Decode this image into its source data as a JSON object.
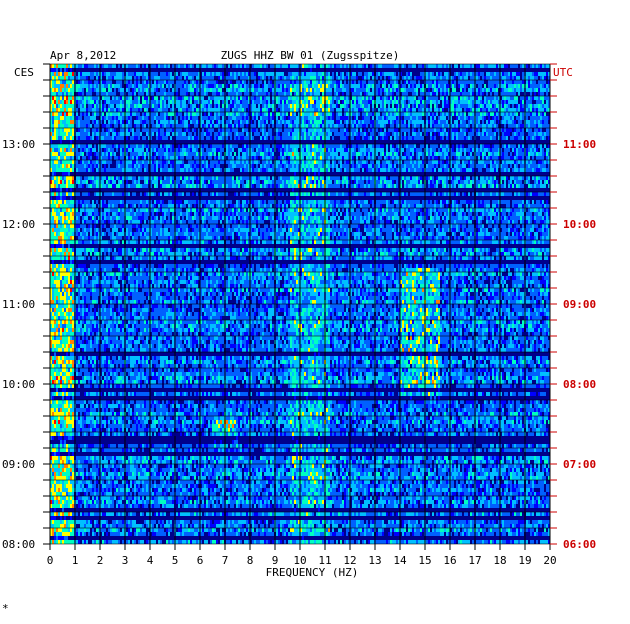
{
  "chart_data": {
    "type": "heatmap",
    "date": "Apr 8,2012",
    "title": "ZUGS HHZ BW 01 (Zugsspitze)",
    "left_timezone": "CES",
    "right_timezone": "UTC",
    "xlabel": "FREQUENCY (HZ)",
    "xlim": [
      0,
      20
    ],
    "x_ticks": [
      "0",
      "1",
      "2",
      "3",
      "4",
      "5",
      "6",
      "7",
      "8",
      "9",
      "10",
      "11",
      "12",
      "13",
      "14",
      "15",
      "16",
      "17",
      "18",
      "19",
      "20"
    ],
    "ylim_local": [
      "08:00",
      "14:00"
    ],
    "y_ticks_left": [
      "13:00",
      "12:00",
      "11:00",
      "10:00",
      "09:00",
      "08:00"
    ],
    "y_ticks_right": [
      "11:00",
      "10:00",
      "09:00",
      "08:00",
      "07:00",
      "06:00"
    ],
    "colors": {
      "background": "#00008b",
      "grid": "#000000",
      "left_axis_text": "#000000",
      "right_axis_text": "#cc0000",
      "colormap": [
        "#00008b",
        "#0000ff",
        "#0060ff",
        "#00c0ff",
        "#00ffc0",
        "#ffff00",
        "#ff8000",
        "#ff0000"
      ]
    },
    "spectral_features": [
      {
        "frequency_hz": [
          0.0,
          1.0
        ],
        "level": "high",
        "note": "broadband low-frequency energy throughout"
      },
      {
        "frequency_hz": [
          10.0,
          11.0
        ],
        "level": "high",
        "note": "persistent band"
      },
      {
        "frequency_hz": [
          14.0,
          15.5
        ],
        "level": "high",
        "note": "strong band around 10:00-11:00 local"
      },
      {
        "frequency_hz": [
          6.5,
          7.5
        ],
        "level": "medium",
        "note": "burst near 09:20 local"
      }
    ]
  }
}
